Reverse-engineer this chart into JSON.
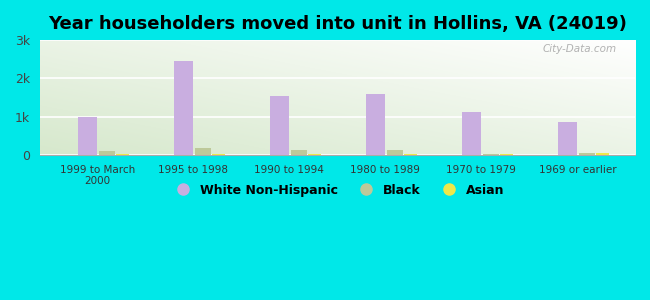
{
  "title": "Year householders moved into unit in Hollins, VA (24019)",
  "categories": [
    "1999 to March\n2000",
    "1995 to 1998",
    "1990 to 1994",
    "1980 to 1989",
    "1970 to 1979",
    "1969 or earlier"
  ],
  "white": [
    1000,
    2450,
    1550,
    1600,
    1130,
    860
  ],
  "black": [
    115,
    185,
    135,
    130,
    20,
    55
  ],
  "asian": [
    30,
    25,
    15,
    15,
    20,
    55
  ],
  "white_color": "#c9aee0",
  "black_color": "#bdc99a",
  "asian_color": "#ede84a",
  "background_outer": "#00e8e8",
  "plot_bg_top": "#e8f4f0",
  "plot_bg_bottom": "#d4eacc",
  "ylim": [
    0,
    3000
  ],
  "yticks": [
    0,
    1000,
    2000,
    3000
  ],
  "ytick_labels": [
    "0",
    "1k",
    "2k",
    "3k"
  ],
  "bar_width": 0.18,
  "title_fontsize": 13,
  "watermark": "City-Data.com"
}
